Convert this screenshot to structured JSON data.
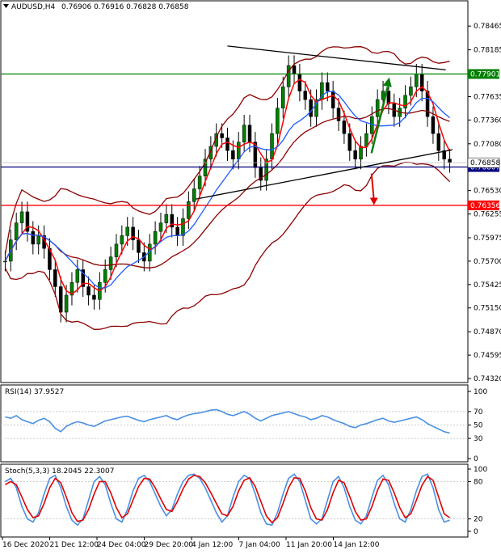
{
  "header": {
    "symbol": "AUDUSD,H4",
    "ohlc": "0.76906 0.76916 0.76828 0.76858"
  },
  "colors": {
    "bull_candle": "#008000",
    "bear_candle": "#000000",
    "bollinger": "#8b0000",
    "ma_fast": "#ff0000",
    "ma_slow": "#1e5aff",
    "support_line": "#000080",
    "resistance_line": "#008000",
    "lower_line": "#ff0000",
    "trendline": "#000000",
    "arrow_up": "#0a7d0a",
    "arrow_down": "#e00000",
    "rsi_line": "#4a90e2",
    "stoch_main": "#4a90e2",
    "stoch_signal": "#e00000"
  },
  "chart_data": [
    {
      "type": "candlestick",
      "price_axis_ticks": [
        "0.78465",
        "0.78185",
        "0.77635",
        "0.77360",
        "0.77080",
        "0.76530",
        "0.76255",
        "0.75975",
        "0.75700",
        "0.75425",
        "0.75150",
        "0.74870",
        "0.74595",
        "0.74320"
      ],
      "ylim": [
        0.7432,
        0.786
      ],
      "time_labels": [
        "16 Dec 2020",
        "21 Dec 12:00",
        "24 Dec 04:00",
        "29 Dec 20:00",
        "4 Jan 12:00",
        "7 Jan 04:00",
        "11 Jan 20:00",
        "14 Jan 12:00"
      ],
      "close_series": [
        0.757,
        0.7595,
        0.7615,
        0.7628,
        0.7605,
        0.759,
        0.76,
        0.7585,
        0.756,
        0.754,
        0.751,
        0.753,
        0.7545,
        0.756,
        0.754,
        0.753,
        0.7525,
        0.7545,
        0.756,
        0.7575,
        0.759,
        0.76,
        0.761,
        0.7595,
        0.758,
        0.757,
        0.759,
        0.7605,
        0.7615,
        0.7625,
        0.761,
        0.76,
        0.762,
        0.764,
        0.7655,
        0.767,
        0.769,
        0.7705,
        0.772,
        0.7715,
        0.77,
        0.769,
        0.771,
        0.773,
        0.771,
        0.768,
        0.7665,
        0.769,
        0.772,
        0.775,
        0.7775,
        0.78,
        0.779,
        0.777,
        0.776,
        0.774,
        0.776,
        0.778,
        0.777,
        0.775,
        0.7735,
        0.772,
        0.77,
        0.769,
        0.7705,
        0.772,
        0.774,
        0.776,
        0.777,
        0.7755,
        0.774,
        0.775,
        0.7765,
        0.7775,
        0.779,
        0.777,
        0.774,
        0.772,
        0.77,
        0.769,
        0.7686
      ],
      "horizontal_levels": [
        {
          "label": "0.77901",
          "value": 0.77901,
          "color": "#008000"
        },
        {
          "label": "0.76807",
          "value": 0.76807,
          "color": "#000080"
        },
        {
          "label": "0.76356",
          "value": 0.76356,
          "color": "#ff0000"
        }
      ],
      "current_price_label": "0.76858",
      "current_price": 0.76858
    },
    {
      "type": "line",
      "title": "RSI(14) 37.9527",
      "ylim": [
        0,
        100
      ],
      "axis_ticks": [
        "100",
        "70",
        "50",
        "30",
        "0"
      ],
      "tick_values": [
        100,
        70,
        50,
        30,
        0
      ],
      "values": [
        62,
        60,
        64,
        58,
        55,
        52,
        57,
        60,
        55,
        45,
        40,
        48,
        52,
        55,
        53,
        50,
        48,
        52,
        56,
        58,
        60,
        62,
        63,
        60,
        57,
        55,
        58,
        60,
        62,
        64,
        60,
        58,
        62,
        65,
        67,
        68,
        70,
        72,
        73,
        70,
        66,
        64,
        67,
        70,
        66,
        60,
        56,
        60,
        64,
        66,
        68,
        70,
        67,
        64,
        62,
        58,
        60,
        64,
        62,
        58,
        55,
        52,
        48,
        46,
        50,
        52,
        55,
        58,
        60,
        56,
        54,
        56,
        58,
        60,
        62,
        58,
        52,
        48,
        44,
        40,
        38
      ]
    },
    {
      "type": "line",
      "title": "Stoch(5,3,3) 18.2045 22.3007",
      "ylim": [
        0,
        100
      ],
      "axis_ticks": [
        "100",
        "80",
        "20",
        "0"
      ],
      "tick_values": [
        100,
        80,
        20,
        0
      ],
      "series": [
        {
          "values": [
            80,
            85,
            70,
            40,
            20,
            15,
            30,
            60,
            85,
            90,
            70,
            40,
            18,
            10,
            20,
            50,
            80,
            88,
            75,
            45,
            20,
            15,
            35,
            65,
            85,
            90,
            80,
            60,
            40,
            25,
            35,
            60,
            80,
            90,
            92,
            85,
            70,
            50,
            30,
            15,
            25,
            55,
            80,
            90,
            85,
            60,
            30,
            12,
            10,
            30,
            60,
            85,
            92,
            80,
            50,
            20,
            12,
            20,
            50,
            80,
            88,
            70,
            40,
            18,
            12,
            25,
            55,
            82,
            90,
            75,
            45,
            20,
            15,
            35,
            65,
            88,
            92,
            70,
            35,
            15,
            18
          ]
        },
        {
          "values": [
            75,
            80,
            75,
            55,
            35,
            22,
            25,
            45,
            70,
            85,
            78,
            55,
            30,
            16,
            18,
            35,
            60,
            80,
            80,
            62,
            38,
            22,
            28,
            50,
            72,
            85,
            84,
            70,
            52,
            35,
            32,
            48,
            68,
            84,
            90,
            88,
            78,
            62,
            45,
            28,
            25,
            40,
            65,
            82,
            86,
            72,
            48,
            25,
            14,
            22,
            45,
            70,
            86,
            85,
            65,
            38,
            20,
            18,
            35,
            62,
            82,
            78,
            56,
            32,
            18,
            20,
            40,
            66,
            84,
            82,
            62,
            38,
            22,
            28,
            50,
            74,
            88,
            82,
            55,
            28,
            22
          ]
        }
      ]
    }
  ]
}
